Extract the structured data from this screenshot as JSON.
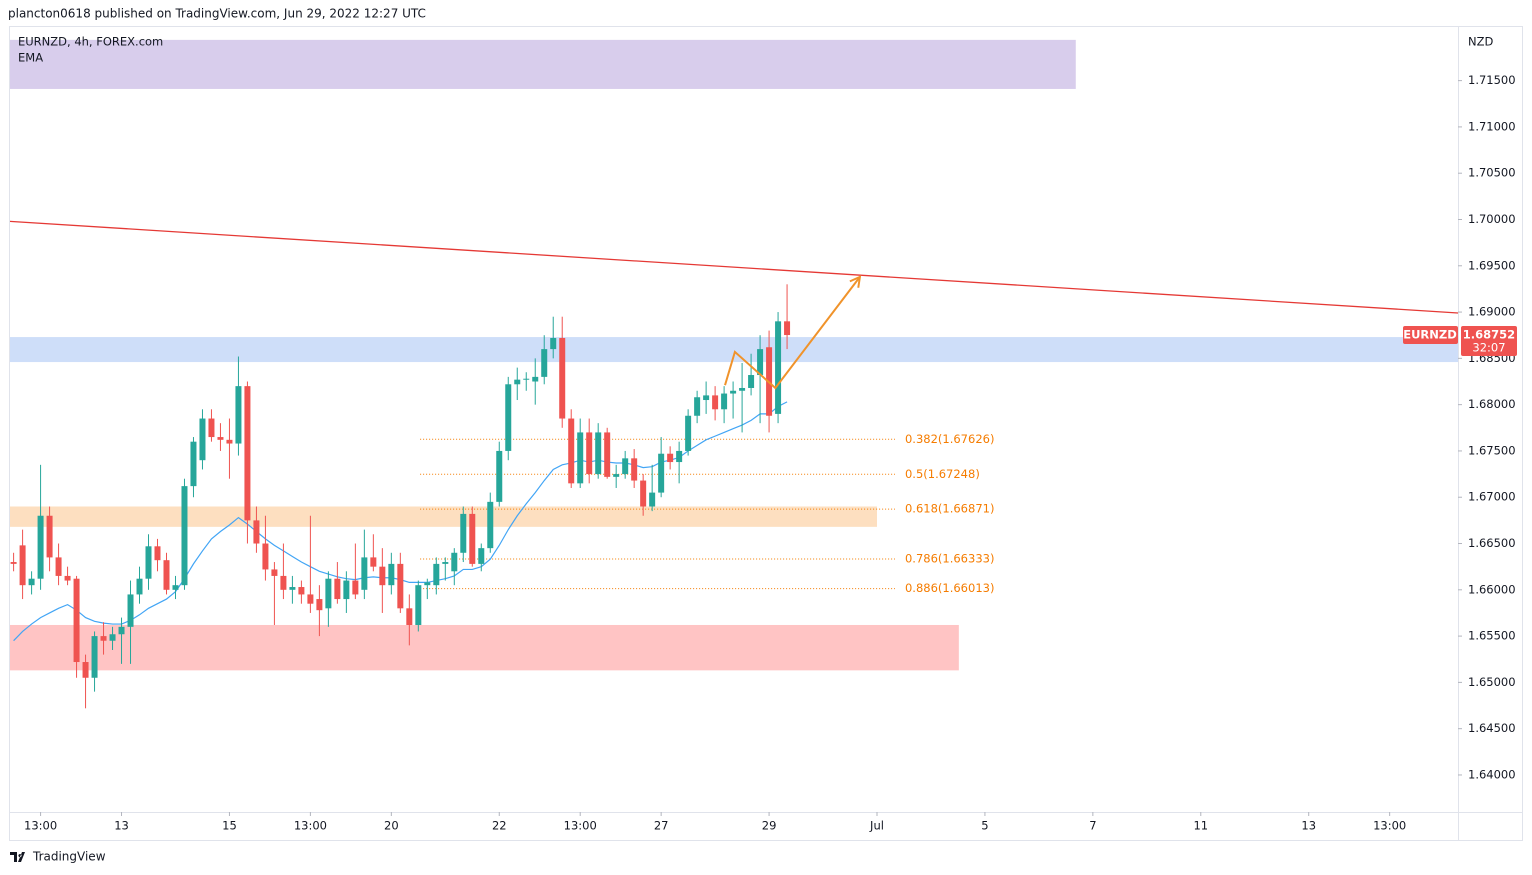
{
  "header": "plancton0618 published on TradingView.com, Jun 29, 2022 12:27 UTC",
  "footer": "TradingView",
  "chart_data": {
    "type": "candlestick",
    "title": "EURNZD, 4h, FOREX.com",
    "unit": "NZD",
    "up_color": "#26a69a",
    "down_color": "#ef5350",
    "open": [
      1.663,
      1.6648,
      1.6605,
      1.6612,
      1.668,
      1.6635,
      1.6615,
      1.6612,
      1.6522,
      1.6505,
      1.655,
      1.6545,
      1.6552,
      1.656,
      1.6595,
      1.6612,
      1.6647,
      1.6632,
      1.66,
      1.6605,
      1.6712,
      1.674,
      1.6785,
      1.6765,
      1.6762,
      1.6758,
      1.682,
      1.6675,
      1.665,
      1.6622,
      1.6615,
      1.66,
      1.6603,
      1.6595,
      1.659,
      1.658,
      1.6612,
      1.659,
      1.661,
      1.66,
      1.6635,
      1.6625,
      1.6605,
      1.6628,
      1.658,
      1.6562,
      1.6605,
      1.6605,
      1.6628,
      1.662,
      1.664,
      1.6682,
      1.6628,
      1.6645,
      1.6695,
      1.675,
      1.6822,
      1.6827,
      1.6825,
      1.683,
      1.686,
      1.6872,
      1.6785,
      1.6715,
      1.677,
      1.6725,
      1.677,
      1.6722,
      1.6725,
      1.6742,
      1.6718,
      1.669,
      1.6705,
      1.6747,
      1.6738,
      1.675,
      1.6788,
      1.6805,
      1.681,
      1.6795,
      1.6812,
      1.6815,
      1.6818,
      1.6832,
      1.6862,
      1.679,
      1.689
    ],
    "high": [
      1.664,
      1.6665,
      1.662,
      1.6735,
      1.669,
      1.665,
      1.6625,
      1.6615,
      1.653,
      1.6555,
      1.6565,
      1.656,
      1.657,
      1.661,
      1.6625,
      1.666,
      1.6655,
      1.664,
      1.6615,
      1.672,
      1.6765,
      1.6795,
      1.6795,
      1.678,
      1.6785,
      1.6852,
      1.6825,
      1.669,
      1.668,
      1.663,
      1.665,
      1.6615,
      1.661,
      1.668,
      1.6605,
      1.662,
      1.663,
      1.662,
      1.665,
      1.6665,
      1.666,
      1.6645,
      1.664,
      1.664,
      1.6595,
      1.661,
      1.6612,
      1.6635,
      1.6635,
      1.6645,
      1.669,
      1.669,
      1.665,
      1.6705,
      1.676,
      1.683,
      1.684,
      1.6835,
      1.685,
      1.6875,
      1.6895,
      1.6895,
      1.6795,
      1.6785,
      1.6785,
      1.678,
      1.6775,
      1.6735,
      1.675,
      1.6752,
      1.6725,
      1.6735,
      1.6765,
      1.6755,
      1.676,
      1.6795,
      1.6815,
      1.6825,
      1.682,
      1.682,
      1.6825,
      1.6845,
      1.6855,
      1.6875,
      1.688,
      1.69,
      1.693
    ],
    "low": [
      1.662,
      1.659,
      1.6595,
      1.66,
      1.662,
      1.6605,
      1.6605,
      1.6505,
      1.6472,
      1.649,
      1.653,
      1.6535,
      1.652,
      1.652,
      1.6585,
      1.66,
      1.662,
      1.6595,
      1.659,
      1.66,
      1.67,
      1.673,
      1.676,
      1.675,
      1.672,
      1.6745,
      1.665,
      1.664,
      1.661,
      1.6562,
      1.659,
      1.6585,
      1.6585,
      1.6575,
      1.655,
      1.656,
      1.6585,
      1.6575,
      1.659,
      1.659,
      1.662,
      1.6575,
      1.6595,
      1.6575,
      1.654,
      1.6555,
      1.659,
      1.6595,
      1.661,
      1.6605,
      1.663,
      1.6625,
      1.662,
      1.664,
      1.669,
      1.674,
      1.6805,
      1.6815,
      1.68,
      1.6822,
      1.685,
      1.6775,
      1.671,
      1.671,
      1.6715,
      1.672,
      1.672,
      1.671,
      1.672,
      1.671,
      1.668,
      1.6685,
      1.67,
      1.673,
      1.6715,
      1.6745,
      1.678,
      1.679,
      1.6783,
      1.678,
      1.6785,
      1.677,
      1.681,
      1.678,
      1.677,
      1.678,
      1.686
    ],
    "close": [
      1.6628,
      1.6605,
      1.6612,
      1.668,
      1.6635,
      1.6615,
      1.661,
      1.6522,
      1.6505,
      1.655,
      1.6545,
      1.6552,
      1.656,
      1.6595,
      1.6612,
      1.6647,
      1.6632,
      1.66,
      1.6605,
      1.6712,
      1.676,
      1.6785,
      1.6765,
      1.6762,
      1.6758,
      1.682,
      1.6675,
      1.665,
      1.6622,
      1.6615,
      1.66,
      1.6603,
      1.6595,
      1.6585,
      1.6578,
      1.6612,
      1.659,
      1.661,
      1.6595,
      1.6635,
      1.6625,
      1.6605,
      1.6628,
      1.658,
      1.6562,
      1.6605,
      1.6608,
      1.6628,
      1.663,
      1.664,
      1.6682,
      1.6628,
      1.6645,
      1.6695,
      1.675,
      1.6822,
      1.6827,
      1.6828,
      1.683,
      1.686,
      1.6872,
      1.6785,
      1.6715,
      1.677,
      1.6725,
      1.677,
      1.6722,
      1.6725,
      1.6742,
      1.6718,
      1.669,
      1.6705,
      1.6747,
      1.6738,
      1.675,
      1.6788,
      1.6808,
      1.681,
      1.6795,
      1.6812,
      1.6815,
      1.6818,
      1.6832,
      1.686,
      1.6788,
      1.689,
      1.68752
    ],
    "ema": {
      "name": "EMA",
      "color": "#42a5f5",
      "values": [
        1.6545,
        1.6555,
        1.6563,
        1.657,
        1.6575,
        1.658,
        1.6584,
        1.6578,
        1.657,
        1.6566,
        1.6564,
        1.6563,
        1.6563,
        1.6567,
        1.6573,
        1.658,
        1.6585,
        1.659,
        1.6598,
        1.6612,
        1.6628,
        1.6642,
        1.6655,
        1.6663,
        1.667,
        1.6678,
        1.6671,
        1.6663,
        1.6655,
        1.6648,
        1.6642,
        1.6636,
        1.663,
        1.6625,
        1.662,
        1.6617,
        1.6614,
        1.6612,
        1.6611,
        1.6613,
        1.6614,
        1.6613,
        1.6613,
        1.6611,
        1.6608,
        1.6608,
        1.6608,
        1.661,
        1.6612,
        1.6615,
        1.6622,
        1.6622,
        1.6625,
        1.6633,
        1.6648,
        1.6665,
        1.668,
        1.6693,
        1.6705,
        1.6718,
        1.673,
        1.6735,
        1.6737,
        1.674,
        1.6738,
        1.674,
        1.6738,
        1.6737,
        1.6737,
        1.6735,
        1.6732,
        1.6733,
        1.6738,
        1.674,
        1.6743,
        1.675,
        1.6756,
        1.6762,
        1.6766,
        1.677,
        1.6774,
        1.6778,
        1.6783,
        1.679,
        1.679,
        1.6798,
        1.6803
      ]
    },
    "xlim": [
      -0.4,
      160.6
    ],
    "ylim": [
      1.636,
      1.7209
    ],
    "xticks": [
      {
        "value": 3,
        "label": "13:00"
      },
      {
        "value": 12,
        "label": "13"
      },
      {
        "value": 24,
        "label": "15"
      },
      {
        "value": 33,
        "label": "13:00"
      },
      {
        "value": 42,
        "label": "20"
      },
      {
        "value": 54,
        "label": "22"
      },
      {
        "value": 63,
        "label": "13:00"
      },
      {
        "value": 72,
        "label": "27"
      },
      {
        "value": 84,
        "label": "29"
      },
      {
        "value": 96,
        "label": "Jul"
      },
      {
        "value": 108,
        "label": "5"
      },
      {
        "value": 120,
        "label": "7"
      },
      {
        "value": 132,
        "label": "11"
      },
      {
        "value": 144,
        "label": "13"
      },
      {
        "value": 153,
        "label": "13:00"
      }
    ],
    "yticks": [
      {
        "value": 1.64,
        "label": "1.64000"
      },
      {
        "value": 1.645,
        "label": "1.64500"
      },
      {
        "value": 1.65,
        "label": "1.65000"
      },
      {
        "value": 1.655,
        "label": "1.65500"
      },
      {
        "value": 1.66,
        "label": "1.66000"
      },
      {
        "value": 1.665,
        "label": "1.66500"
      },
      {
        "value": 1.67,
        "label": "1.67000"
      },
      {
        "value": 1.675,
        "label": "1.67500"
      },
      {
        "value": 1.68,
        "label": "1.68000"
      },
      {
        "value": 1.685,
        "label": "1.68500"
      },
      {
        "value": 1.69,
        "label": "1.69000"
      },
      {
        "value": 1.695,
        "label": "1.69500"
      },
      {
        "value": 1.7,
        "label": "1.70000"
      },
      {
        "value": 1.705,
        "label": "1.70500"
      },
      {
        "value": 1.71,
        "label": "1.71000"
      },
      {
        "value": 1.715,
        "label": "1.71500"
      }
    ],
    "zones": [
      {
        "x": [
          -0.4,
          118.1
        ],
        "y": [
          1.7194,
          1.7141
        ],
        "color": "#d1c4e9"
      },
      {
        "x": [
          -0.4,
          160.6
        ],
        "y": [
          1.6873,
          1.6846
        ],
        "color": "#c5d8f8"
      },
      {
        "x": [
          -0.4,
          96.0
        ],
        "y": [
          1.669,
          1.6668
        ],
        "color": "#fdd9b5"
      },
      {
        "x": [
          -0.4,
          105.1
        ],
        "y": [
          1.6562,
          1.6513
        ],
        "color": "#ffbaba"
      }
    ],
    "trendline": {
      "x": [
        -0.4,
        160.6
      ],
      "y": [
        1.6998,
        1.6899
      ],
      "color": "#e53935"
    },
    "fib_x": [
      45.2,
      98.0
    ],
    "fib_color": "#f57c00",
    "fib_levels": [
      {
        "value": 1.67626,
        "label": "0.382(1.67626)"
      },
      {
        "value": 1.67248,
        "label": "0.5(1.67248)"
      },
      {
        "value": 1.66871,
        "label": "0.618(1.66871)"
      },
      {
        "value": 1.66333,
        "label": "0.786(1.66333)"
      },
      {
        "value": 1.66013,
        "label": "0.886(1.66013)"
      }
    ],
    "projection": {
      "x": [
        79.1,
        80.2,
        84.7,
        94.1
      ],
      "y": [
        1.6821,
        1.6857,
        1.6818,
        1.6938
      ],
      "color": "#f0932b"
    },
    "last_price": {
      "symbol": "EURNZD",
      "value": 1.68752,
      "countdown": "32:07"
    }
  }
}
